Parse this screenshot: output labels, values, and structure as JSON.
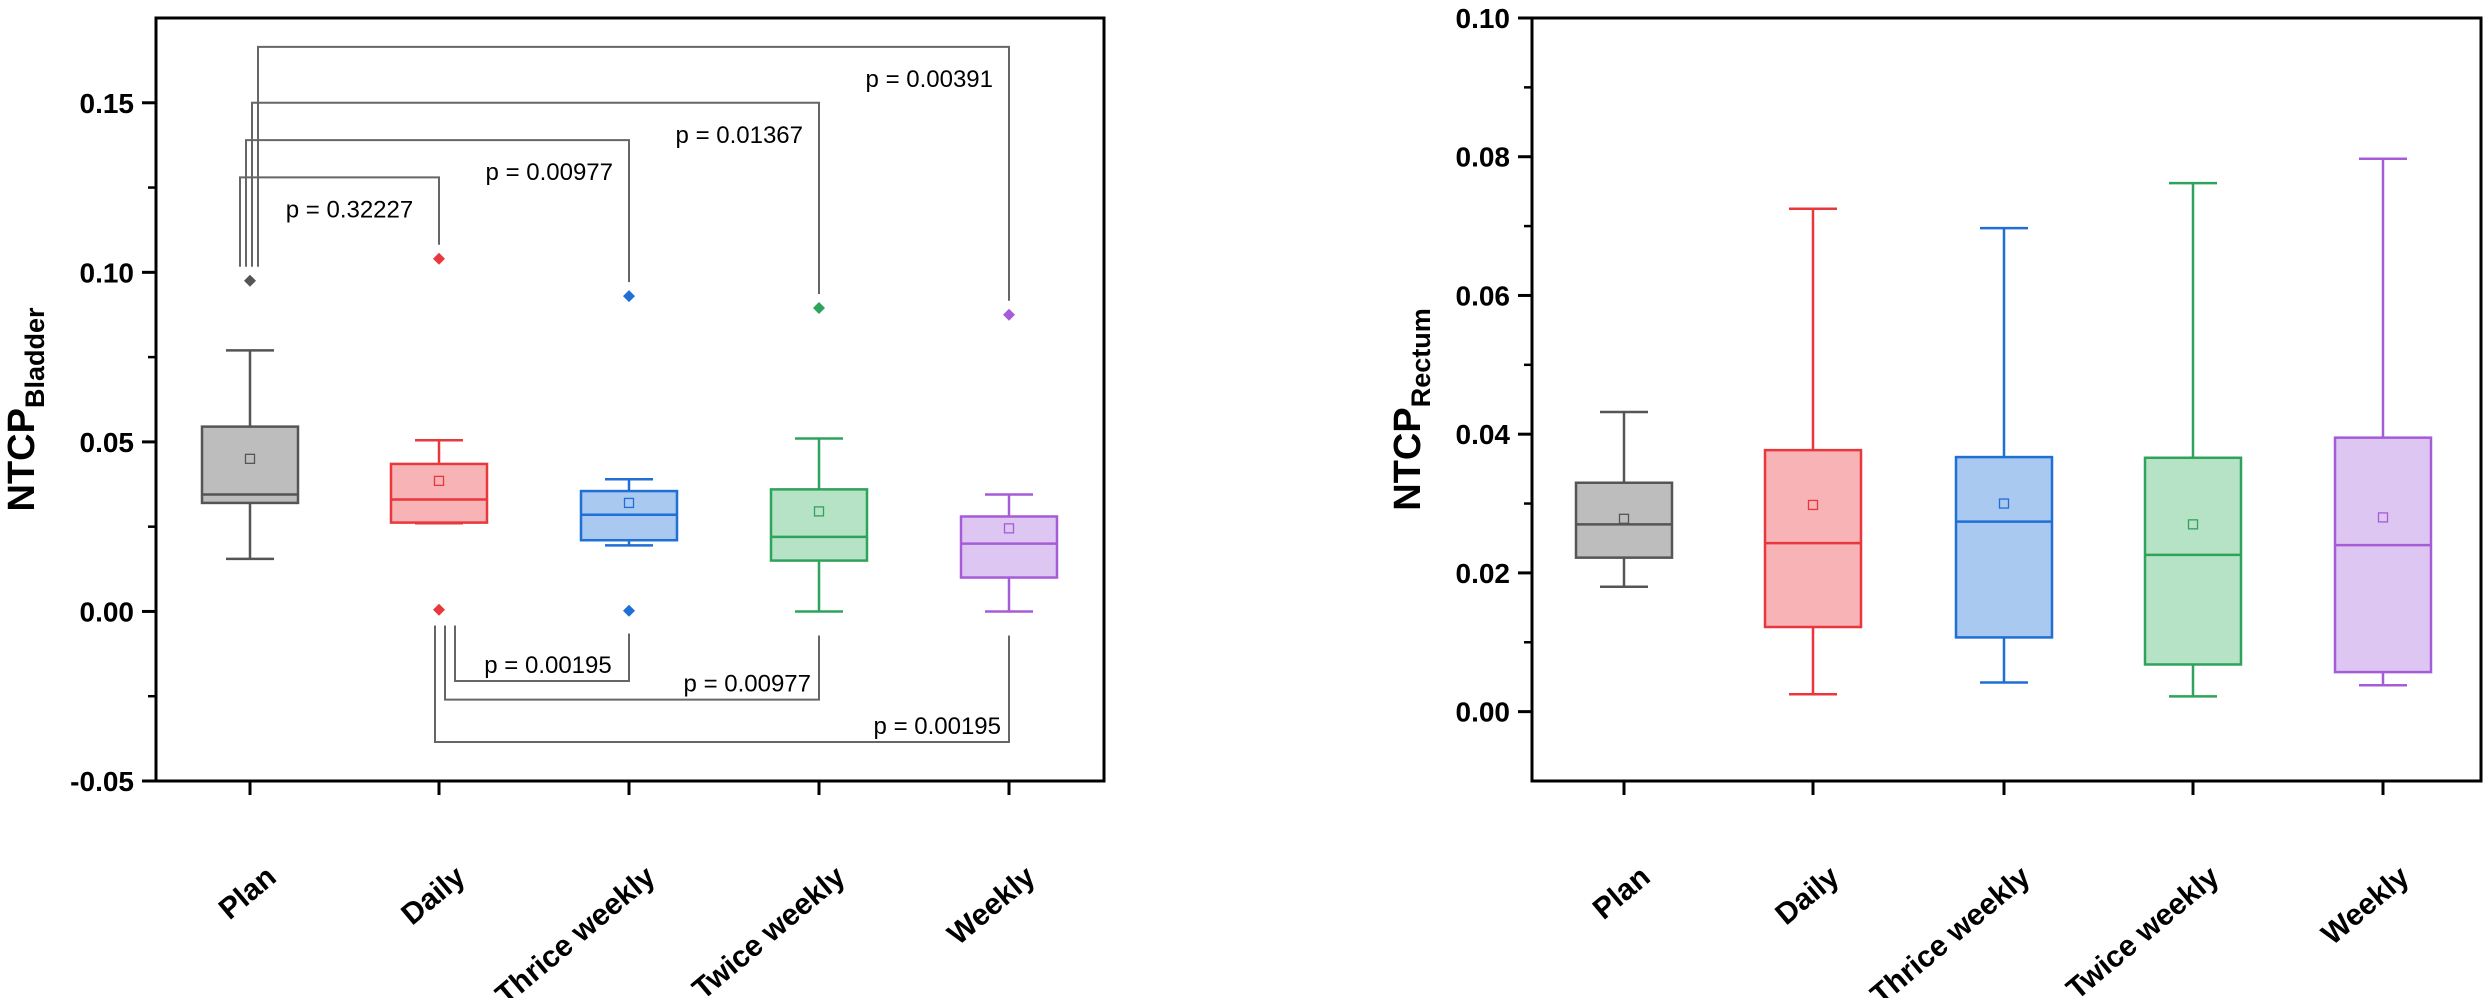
{
  "chart_data": [
    {
      "type": "box",
      "ylabel": "NTCP",
      "ylabel_subscript": "Bladder",
      "ylim": [
        -0.05,
        0.175
      ],
      "yticks": [
        -0.05,
        0.0,
        0.05,
        0.1,
        0.15
      ],
      "ytick_labels": [
        "-0.05",
        "0.00",
        "0.05",
        "0.10",
        "0.15"
      ],
      "categories": [
        "Plan",
        "Daily",
        "Thrice weekly",
        "Twice weekly",
        "Weekly"
      ],
      "colors": [
        "#555555",
        "#e8383d",
        "#1f6fd6",
        "#2ea35b",
        "#a55cd6"
      ],
      "fills": [
        "#bdbdbd",
        "#f7b3b5",
        "#a9c9f1",
        "#b6e2c5",
        "#ddc6f2"
      ],
      "boxes": [
        {
          "whisker_low": 0.0155,
          "q1": 0.032,
          "median": 0.0345,
          "q3": 0.0545,
          "whisker_high": 0.077,
          "mean": 0.045,
          "outliers": [
            0.0975
          ]
        },
        {
          "whisker_low": 0.026,
          "q1": 0.0262,
          "median": 0.033,
          "q3": 0.0435,
          "whisker_high": 0.0505,
          "mean": 0.0385,
          "outliers": [
            0.104,
            0.0005
          ]
        },
        {
          "whisker_low": 0.0195,
          "q1": 0.021,
          "median": 0.0285,
          "q3": 0.0355,
          "whisker_high": 0.039,
          "mean": 0.032,
          "outliers": [
            0.093,
            0.0002
          ]
        },
        {
          "whisker_low": 0.0,
          "q1": 0.015,
          "median": 0.022,
          "q3": 0.036,
          "whisker_high": 0.051,
          "mean": 0.0295,
          "outliers": [
            0.0895
          ]
        },
        {
          "whisker_low": 0.0,
          "q1": 0.01,
          "median": 0.02,
          "q3": 0.028,
          "whisker_high": 0.0345,
          "mean": 0.0245,
          "outliers": [
            0.0875
          ]
        }
      ],
      "annotations_above": [
        {
          "from": 0,
          "to": 1,
          "label": "p = 0.32227",
          "y_level": 0.128
        },
        {
          "from": 0,
          "to": 2,
          "label": "p = 0.00977",
          "y_level": 0.139
        },
        {
          "from": 0,
          "to": 3,
          "label": "p = 0.01367",
          "y_level": 0.15
        },
        {
          "from": 0,
          "to": 4,
          "label": "p = 0.00391",
          "y_level": 0.1665
        }
      ],
      "annotations_below": [
        {
          "from": 1,
          "to": 2,
          "label": "p = 0.00195",
          "y_level": -0.0205
        },
        {
          "from": 1,
          "to": 3,
          "label": "p = 0.00977",
          "y_level": -0.026
        },
        {
          "from": 1,
          "to": 4,
          "label": "p = 0.00195",
          "y_level": -0.0385
        }
      ]
    },
    {
      "type": "box",
      "ylabel": "NTCP",
      "ylabel_subscript": "Rectum",
      "ylim": [
        -0.01,
        0.1
      ],
      "yticks": [
        0.0,
        0.02,
        0.04,
        0.06,
        0.08,
        0.1
      ],
      "ytick_labels": [
        "0.00",
        "0.02",
        "0.04",
        "0.06",
        "0.08",
        "0.10"
      ],
      "categories": [
        "Plan",
        "Daily",
        "Thrice weekly",
        "Twice weekly",
        "Weekly"
      ],
      "colors": [
        "#555555",
        "#e8383d",
        "#1f6fd6",
        "#2ea35b",
        "#a55cd6"
      ],
      "fills": [
        "#bdbdbd",
        "#f7b3b5",
        "#a9c9f1",
        "#b6e2c5",
        "#ddc6f2"
      ],
      "boxes": [
        {
          "whisker_low": 0.018,
          "q1": 0.0222,
          "median": 0.027,
          "q3": 0.033,
          "whisker_high": 0.0432,
          "mean": 0.0278,
          "outliers": []
        },
        {
          "whisker_low": 0.0025,
          "q1": 0.0122,
          "median": 0.0243,
          "q3": 0.0377,
          "whisker_high": 0.0725,
          "mean": 0.0298,
          "outliers": []
        },
        {
          "whisker_low": 0.0042,
          "q1": 0.0107,
          "median": 0.0274,
          "q3": 0.0367,
          "whisker_high": 0.0697,
          "mean": 0.03,
          "outliers": []
        },
        {
          "whisker_low": 0.0022,
          "q1": 0.0068,
          "median": 0.0226,
          "q3": 0.0366,
          "whisker_high": 0.0762,
          "mean": 0.027,
          "outliers": []
        },
        {
          "whisker_low": 0.0038,
          "q1": 0.0057,
          "median": 0.024,
          "q3": 0.0395,
          "whisker_high": 0.0797,
          "mean": 0.028,
          "outliers": []
        }
      ]
    }
  ]
}
